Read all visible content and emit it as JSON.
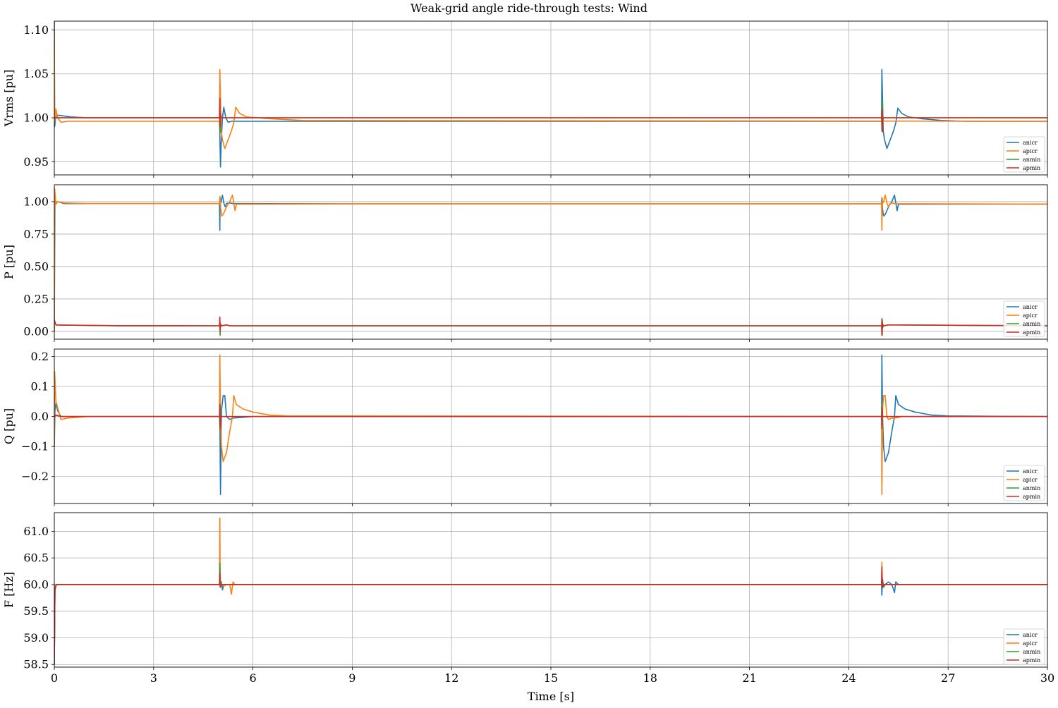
{
  "title": "Weak-grid angle ride-through tests: Wind",
  "colors": {
    "anicr": "#1f77b4",
    "apicr": "#ff7f0e",
    "anmin": "#2ca02c",
    "apmin": "#d62728",
    "grid": "#b0b0b0"
  },
  "chart_data": [
    {
      "type": "line",
      "ylabel": "Vrms [pu]",
      "xlim": [
        0,
        30
      ],
      "ylim": [
        0.935,
        1.11
      ],
      "yticks": [
        "0.95",
        "1.00",
        "1.05",
        "1.10"
      ],
      "grid": true,
      "legend_position": "bottom-right",
      "series": [
        {
          "name": "anicr",
          "x": [
            0,
            0.01,
            0.05,
            0.1,
            0.5,
            1,
            4.99,
            5.0,
            5.02,
            5.04,
            5.08,
            5.12,
            5.18,
            5.25,
            5.35,
            5.5,
            6,
            7,
            24.99,
            25.0,
            25.02,
            25.04,
            25.08,
            25.15,
            25.25,
            25.35,
            25.42,
            25.48,
            25.6,
            25.8,
            26.2,
            26.8,
            27.5,
            30
          ],
          "values": [
            1.11,
            0.99,
            1.002,
            1.003,
            1.001,
            1.0,
            1.0,
            0.98,
            0.944,
            0.97,
            1.0,
            1.012,
            1.0,
            0.995,
            0.996,
            0.996,
            0.996,
            0.996,
            0.996,
            1.055,
            1.02,
            0.985,
            0.975,
            0.965,
            0.975,
            0.985,
            0.994,
            1.011,
            1.005,
            1.001,
            0.999,
            0.997,
            0.996,
            0.996
          ]
        },
        {
          "name": "apicr",
          "x": [
            0,
            0.01,
            0.05,
            0.1,
            0.2,
            0.4,
            1,
            4.99,
            5.0,
            5.02,
            5.04,
            5.08,
            5.15,
            5.25,
            5.35,
            5.42,
            5.48,
            5.6,
            5.8,
            6.5,
            7.5,
            30
          ],
          "values": [
            1.1,
            0.995,
            1.01,
            1.0,
            0.995,
            0.996,
            0.996,
            0.996,
            1.055,
            1.02,
            0.985,
            0.975,
            0.965,
            0.975,
            0.985,
            0.994,
            1.012,
            1.005,
            1.001,
            0.999,
            0.997,
            0.996
          ]
        },
        {
          "name": "anmin",
          "x": [
            0,
            0.01,
            0.1,
            4.99,
            5.0,
            5.01,
            5.02,
            5.04,
            5.1,
            24.99,
            25.0,
            25.01,
            25.02,
            25.04,
            25.1,
            30
          ],
          "values": [
            1.0,
            1.0,
            1.0,
            1.0,
            1.015,
            0.983,
            1.005,
            1.0,
            1.0,
            1.0,
            0.985,
            1.02,
            0.995,
            1.0,
            1.0,
            1.0
          ]
        },
        {
          "name": "apmin",
          "x": [
            0,
            0.01,
            0.1,
            4.99,
            5.0,
            5.01,
            5.02,
            5.04,
            5.1,
            24.99,
            25.0,
            25.01,
            25.02,
            25.04,
            25.1,
            30
          ],
          "values": [
            1.0,
            1.0,
            1.0,
            1.0,
            1.022,
            0.99,
            1.005,
            1.0,
            1.0,
            1.0,
            1.01,
            0.984,
            0.995,
            1.0,
            1.0,
            1.0
          ]
        }
      ]
    },
    {
      "type": "line",
      "ylabel": "P [pu]",
      "xlim": [
        0,
        30
      ],
      "ylim": [
        -0.06,
        1.13
      ],
      "yticks": [
        "0.00",
        "0.25",
        "0.50",
        "0.75",
        "1.00"
      ],
      "grid": true,
      "legend_position": "bottom-right",
      "series": [
        {
          "name": "anicr",
          "x": [
            0,
            0.02,
            0.05,
            0.1,
            0.3,
            1,
            4.99,
            5.0,
            5.01,
            5.02,
            5.04,
            5.08,
            5.12,
            5.16,
            5.2,
            5.3,
            5.4,
            5.5,
            10,
            24.99,
            25.0,
            25.02,
            25.05,
            25.1,
            25.2,
            25.3,
            25.38,
            25.42,
            25.46,
            25.5,
            30
          ],
          "values": [
            0.0,
            1.0,
            0.99,
            1.0,
            0.985,
            0.985,
            0.985,
            0.78,
            1.03,
            0.985,
            1.0,
            1.05,
            0.99,
            0.96,
            0.985,
            0.99,
            0.985,
            0.985,
            0.983,
            0.983,
            1.03,
            0.94,
            0.89,
            0.9,
            0.96,
            1.0,
            1.05,
            0.99,
            0.93,
            0.98,
            0.981
          ]
        },
        {
          "name": "apicr",
          "x": [
            0,
            0.01,
            0.05,
            0.1,
            0.3,
            1,
            4.99,
            5.0,
            5.03,
            5.06,
            5.1,
            5.2,
            5.3,
            5.38,
            5.42,
            5.46,
            5.5,
            10,
            24.99,
            25.0,
            25.01,
            25.02,
            25.05,
            25.1,
            25.15,
            25.2,
            25.25,
            25.3,
            25.4,
            30
          ],
          "values": [
            0.0,
            1.1,
            0.98,
            1.0,
            0.99,
            0.985,
            0.985,
            1.04,
            0.94,
            0.89,
            0.9,
            0.96,
            1.0,
            1.05,
            0.99,
            0.93,
            0.98,
            0.983,
            0.983,
            0.78,
            1.03,
            0.985,
            1.0,
            1.05,
            0.99,
            0.96,
            0.985,
            0.99,
            0.984,
            0.981
          ]
        },
        {
          "name": "anmin",
          "x": [
            0,
            0.05,
            0.3,
            2,
            4.99,
            5.0,
            5.01,
            5.02,
            5.05,
            5.2,
            5.3,
            24.99,
            25.0,
            25.01,
            25.02,
            25.05,
            25.2,
            30
          ],
          "values": [
            0.08,
            0.05,
            0.048,
            0.044,
            0.043,
            0.1,
            -0.03,
            0.06,
            0.043,
            0.05,
            0.043,
            0.043,
            0.1,
            -0.03,
            0.06,
            0.043,
            0.05,
            0.043
          ]
        },
        {
          "name": "apmin",
          "x": [
            0,
            0.05,
            0.3,
            2,
            4.99,
            5.0,
            5.01,
            5.02,
            5.05,
            5.2,
            5.3,
            24.99,
            25.0,
            25.01,
            25.02,
            25.05,
            25.2,
            30
          ],
          "values": [
            0.09,
            0.05,
            0.048,
            0.044,
            0.043,
            0.11,
            0.0,
            0.055,
            0.043,
            0.05,
            0.043,
            0.043,
            -0.03,
            0.09,
            0.03,
            0.043,
            0.05,
            0.043
          ]
        }
      ]
    },
    {
      "type": "line",
      "ylabel": "Q [pu]",
      "xlim": [
        0,
        30
      ],
      "ylim": [
        -0.29,
        0.225
      ],
      "yticks": [
        "−0.2",
        "−0.1",
        "0.0",
        "0.1",
        "0.2"
      ],
      "grid": true,
      "legend_position": "bottom-right",
      "series": [
        {
          "name": "anicr",
          "x": [
            0,
            0.02,
            0.05,
            0.1,
            0.2,
            0.5,
            1,
            4.99,
            5.0,
            5.02,
            5.05,
            5.1,
            5.15,
            5.2,
            5.3,
            5.4,
            6,
            24.99,
            25.0,
            25.02,
            25.05,
            25.1,
            25.2,
            25.3,
            25.38,
            25.42,
            25.5,
            25.7,
            26,
            26.5,
            27,
            30
          ],
          "values": [
            -0.1,
            0.02,
            0.045,
            0.02,
            0.0,
            0.0,
            0.0,
            0.0,
            0.0,
            -0.26,
            0.02,
            0.07,
            0.07,
            0.0,
            -0.01,
            -0.005,
            0.0,
            0.0,
            0.205,
            0.0,
            -0.1,
            -0.15,
            -0.12,
            -0.05,
            0.0,
            0.07,
            0.04,
            0.025,
            0.015,
            0.005,
            0.002,
            0.0
          ]
        },
        {
          "name": "apicr",
          "x": [
            0,
            0.01,
            0.05,
            0.1,
            0.2,
            0.4,
            1,
            4.99,
            5.0,
            5.02,
            5.05,
            5.1,
            5.2,
            5.3,
            5.38,
            5.42,
            5.5,
            5.7,
            6,
            6.5,
            7,
            24.99,
            25.0,
            25.02,
            25.05,
            25.1,
            25.15,
            25.2,
            25.3,
            25.4,
            25.6,
            30
          ],
          "values": [
            -0.1,
            0.15,
            0.05,
            0.03,
            -0.01,
            -0.005,
            0.0,
            0.0,
            0.205,
            0.0,
            -0.1,
            -0.15,
            -0.12,
            -0.05,
            0.0,
            0.07,
            0.04,
            0.025,
            0.015,
            0.005,
            0.002,
            0.0,
            -0.26,
            0.02,
            0.07,
            0.07,
            0.0,
            -0.01,
            -0.005,
            -0.005,
            0.0,
            0.0
          ]
        },
        {
          "name": "anmin",
          "x": [
            0,
            0.05,
            0.2,
            4.99,
            5.0,
            5.01,
            5.02,
            5.05,
            24.99,
            25.0,
            25.01,
            25.02,
            25.05,
            30
          ],
          "values": [
            0.0,
            0.005,
            0.0,
            0.0,
            -0.04,
            0.04,
            0.0,
            0.0,
            0.0,
            0.04,
            -0.03,
            0.0,
            0.0,
            0.0
          ]
        },
        {
          "name": "apmin",
          "x": [
            0,
            0.05,
            0.2,
            4.99,
            5.0,
            5.01,
            5.02,
            5.05,
            24.99,
            25.0,
            25.01,
            25.02,
            25.05,
            30
          ],
          "values": [
            0.0,
            0.005,
            0.0,
            0.0,
            0.04,
            -0.04,
            0.0,
            0.0,
            0.0,
            -0.04,
            0.03,
            0.0,
            0.0,
            0.0
          ]
        }
      ]
    },
    {
      "type": "line",
      "ylabel": "F [Hz]",
      "xlabel": "Time [s]",
      "xlim": [
        0,
        30
      ],
      "xticks": [
        "0",
        "3",
        "6",
        "9",
        "12",
        "15",
        "18",
        "21",
        "24",
        "27",
        "30"
      ],
      "ylim": [
        58.45,
        61.35
      ],
      "yticks": [
        "58.5",
        "59.0",
        "59.5",
        "60.0",
        "60.5",
        "61.0"
      ],
      "grid": true,
      "legend_position": "bottom-right",
      "series": [
        {
          "name": "anicr",
          "x": [
            0,
            0.02,
            0.06,
            0.15,
            4.99,
            5.0,
            5.02,
            5.05,
            5.08,
            5.12,
            5.2,
            5.3,
            24.99,
            25.0,
            25.02,
            25.05,
            25.1,
            25.2,
            25.3,
            25.38,
            25.42,
            25.5,
            30
          ],
          "values": [
            58.5,
            59.9,
            60.0,
            60.0,
            60.0,
            60.2,
            59.95,
            60.05,
            59.9,
            60.0,
            60.0,
            60.0,
            60.0,
            59.8,
            60.1,
            59.95,
            60.0,
            60.05,
            60.0,
            59.85,
            60.05,
            60.0,
            60.0
          ]
        },
        {
          "name": "apicr",
          "x": [
            0,
            0.02,
            0.06,
            0.15,
            4.99,
            5.0,
            5.01,
            5.02,
            5.05,
            5.1,
            5.2,
            5.3,
            5.35,
            5.4,
            5.45,
            24.99,
            25.0,
            25.01,
            25.02,
            25.05,
            25.1,
            30
          ],
          "values": [
            58.5,
            60.0,
            60.0,
            60.0,
            60.0,
            61.25,
            60.3,
            60.0,
            60.02,
            59.97,
            60.0,
            60.0,
            59.82,
            60.05,
            60.0,
            60.0,
            60.42,
            60.1,
            60.0,
            59.95,
            60.0,
            60.0
          ]
        },
        {
          "name": "anmin",
          "x": [
            0,
            0.02,
            0.06,
            0.15,
            4.99,
            5.0,
            5.01,
            5.02,
            5.05,
            5.1,
            24.99,
            25.0,
            25.01,
            25.02,
            25.05,
            25.1,
            30
          ],
          "values": [
            58.5,
            59.9,
            60.0,
            60.0,
            60.0,
            60.4,
            60.15,
            60.0,
            60.0,
            60.0,
            60.0,
            60.2,
            60.0,
            60.0,
            59.95,
            60.0,
            60.0
          ]
        },
        {
          "name": "apmin",
          "x": [
            0,
            0.02,
            0.06,
            0.15,
            4.99,
            5.0,
            5.01,
            5.02,
            5.05,
            5.1,
            24.99,
            25.0,
            25.01,
            25.02,
            25.05,
            25.1,
            30
          ],
          "values": [
            58.5,
            59.9,
            60.0,
            60.0,
            60.0,
            60.2,
            59.95,
            60.0,
            60.0,
            60.0,
            60.0,
            60.33,
            60.1,
            59.95,
            60.0,
            60.0,
            60.0
          ]
        }
      ]
    }
  ]
}
